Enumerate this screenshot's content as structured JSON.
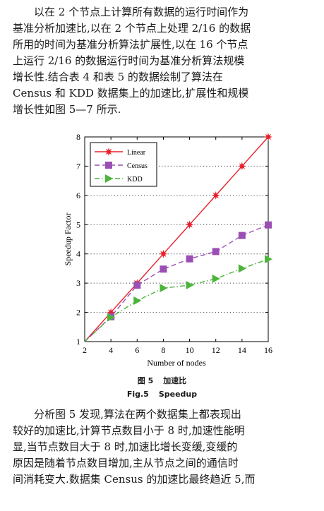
{
  "paragraph_1": [
    "以在 2 个节点上计算所有数据的运行时间作为",
    "基准分析加速比,以在 2 个节点上处理 2/16 的数据",
    "所用的时间为基准分析算法扩展性,以在 16 个节点",
    "上运行 2/16 的数据运行时间为基准分析算法规模",
    "增长性.结合表 4 和表 5 的数据绘制了算法在",
    "Census 和 KDD 数据集上的加速比,扩展性和规模",
    "增长性如图 5—7 所示."
  ],
  "figure": {
    "label_cn": "图 5",
    "title_cn": "加速比",
    "label_en": "Fig.5",
    "title_en": "Speedup"
  },
  "chart_data": {
    "type": "line",
    "x": [
      2,
      4,
      6,
      8,
      10,
      12,
      14,
      16
    ],
    "xlabel": "Number of nodes",
    "ylabel": "Speedup Factor",
    "xlim": [
      2,
      16
    ],
    "ylim": [
      1,
      8
    ],
    "xticks": [
      2,
      4,
      6,
      8,
      10,
      12,
      14,
      16
    ],
    "yticks": [
      1,
      2,
      3,
      4,
      5,
      6,
      7,
      8
    ],
    "grid": "horizontal dotted",
    "legend": "top-left",
    "series": [
      {
        "name": "Linear",
        "values": [
          1,
          2,
          3,
          4,
          5,
          6,
          7,
          8
        ],
        "color": "#e8202a",
        "dash": "solid",
        "marker": "star"
      },
      {
        "name": "Census",
        "values": [
          1,
          1.85,
          2.93,
          3.48,
          3.83,
          4.08,
          4.63,
          4.99
        ],
        "color": "#9b4fb5",
        "dash": "dashed",
        "marker": "square"
      },
      {
        "name": "KDD",
        "values": [
          1,
          1.83,
          2.4,
          2.83,
          2.93,
          3.15,
          3.5,
          3.82
        ],
        "color": "#4cb43a",
        "dash": "dashdot",
        "marker": "triangle-right"
      }
    ]
  },
  "paragraph_2": [
    "分析图 5 发现,算法在两个数据集上都表现出",
    "较好的加速比,计算节点数目小于 8 时,加速性能明",
    "显,当节点数目大于 8 时,加速比增长变缓,变缓的",
    "原因是随着节点数目增加,主从节点之间的通信时",
    "间消耗变大.数据集 Census 的加速比最终趋近 5,而"
  ]
}
